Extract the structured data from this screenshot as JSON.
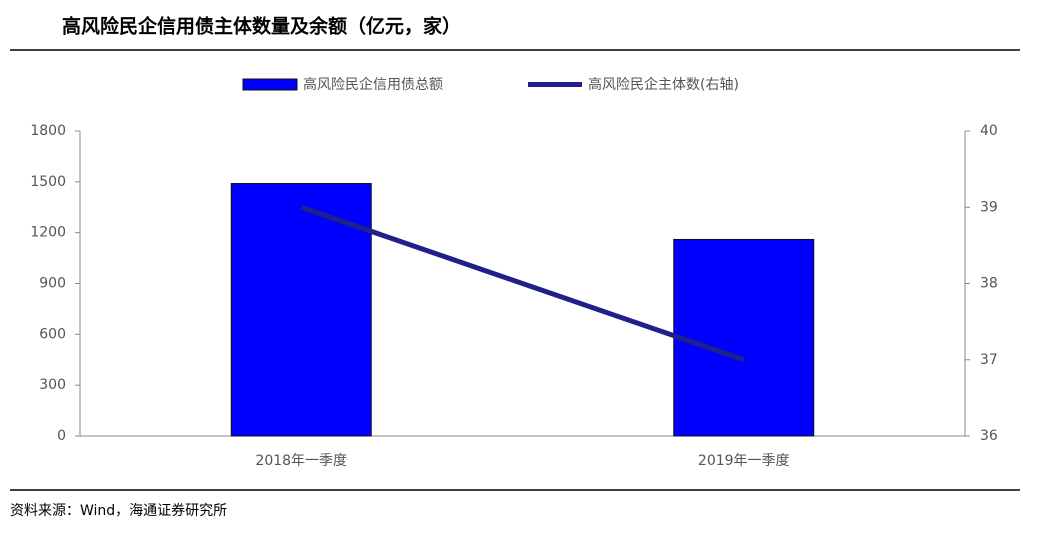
{
  "chart_data": {
    "type": "combo",
    "title": "高风险民企信用债主体数量及余额（亿元，家）",
    "source": "资料来源：Wind，海通证券研究所",
    "categories": [
      "2018年一季度",
      "2019年一季度"
    ],
    "series": [
      {
        "name": "高风险民企信用债总额",
        "type": "bar",
        "color": "#0000ff",
        "values": [
          1490,
          1160
        ]
      },
      {
        "name": "高风险民企主体数(右轴)",
        "type": "line",
        "axis": "y2",
        "color": "#20208a",
        "values": [
          39,
          37
        ]
      }
    ],
    "ylim": [
      0,
      1800
    ],
    "yticks": [
      0,
      300,
      600,
      900,
      1200,
      1500,
      1800
    ],
    "y2lim": [
      36,
      40
    ],
    "y2ticks": [
      36,
      37,
      38,
      39,
      40
    ],
    "grid": false
  }
}
